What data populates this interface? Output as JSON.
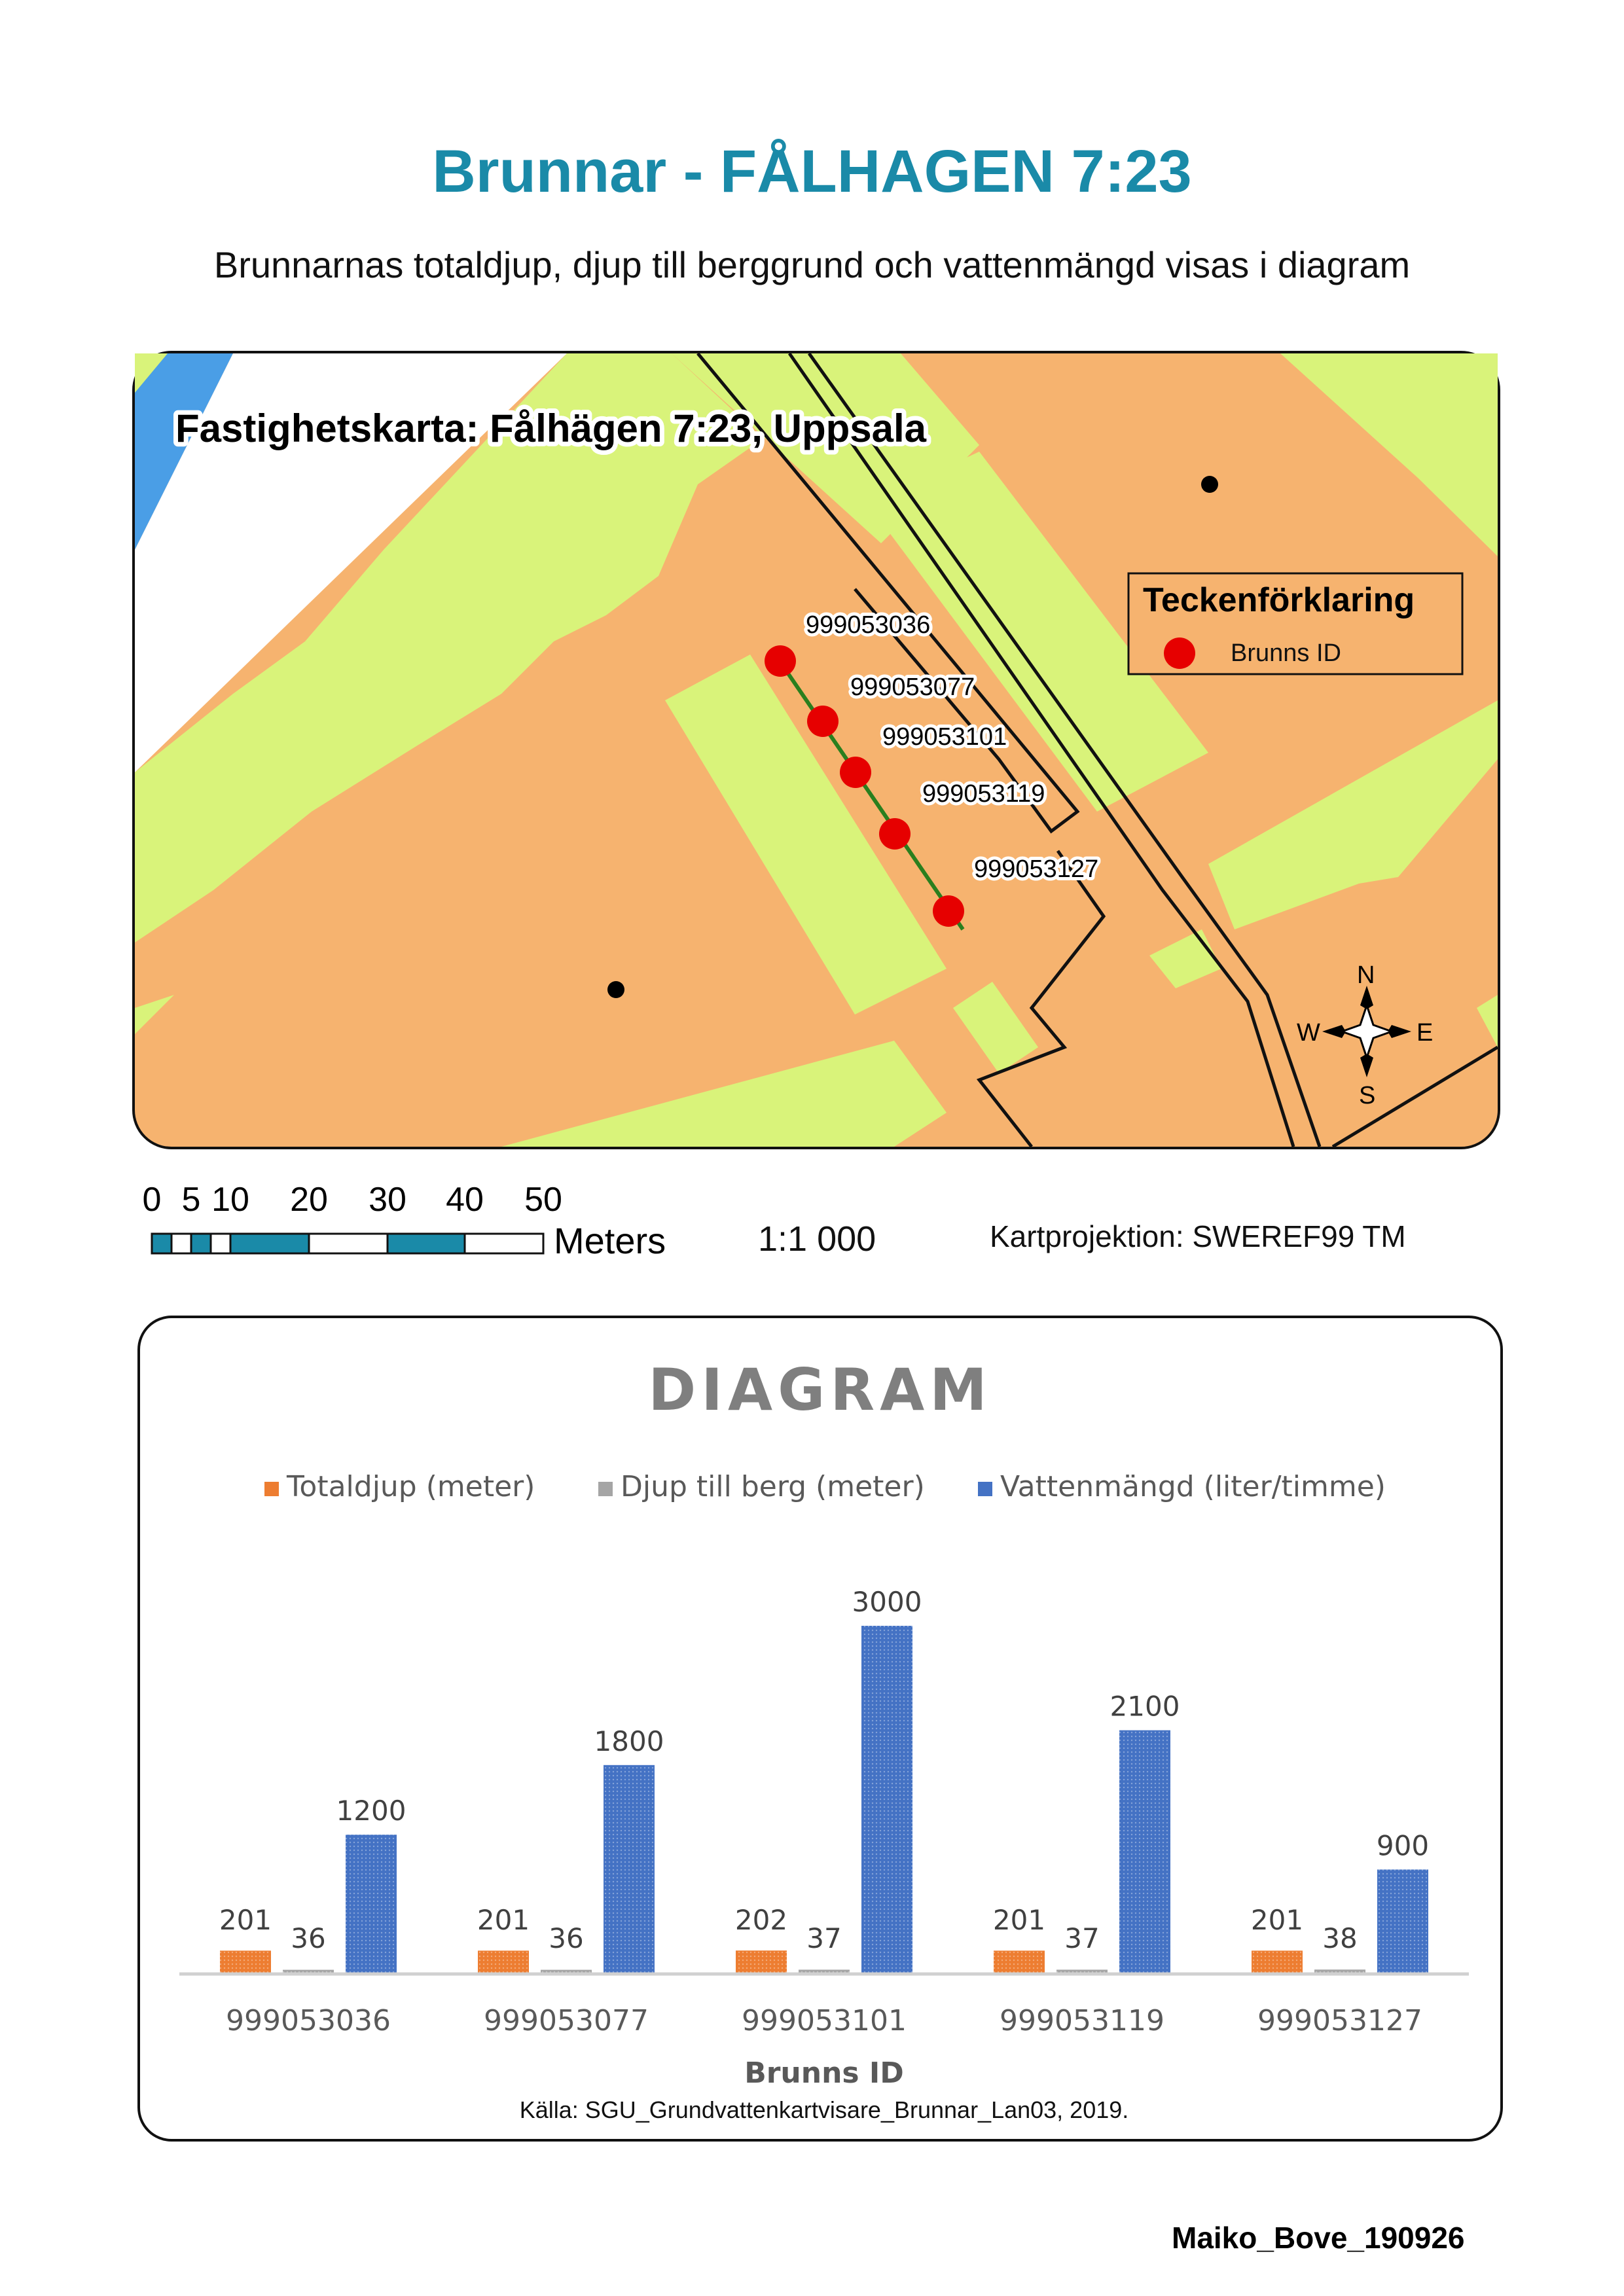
{
  "header": {
    "title": "Brunnar - FÅLHAGEN 7:23",
    "subtitle": "Brunnarnas totaldjup, djup till berggrund och vattenmängd visas i diagram"
  },
  "map": {
    "title": "Fastighetskarta: Fålhägen 7:23, Uppsala",
    "legend": {
      "title": "Teckenförklaring",
      "item_label": "Brunns ID",
      "item_color": "#e60000"
    },
    "wells": [
      "999053036",
      "999053077",
      "999053101",
      "999053119",
      "999053127"
    ],
    "compass": {
      "n": "N",
      "s": "S",
      "e": "E",
      "w": "W"
    },
    "colors": {
      "property": "#f6b36f",
      "building": "#d9f37a",
      "water": "#4a9ee6",
      "road": "#ffffff",
      "well": "#e60000",
      "pipe": "#2a7f1e"
    },
    "scale_bar": {
      "ticks": [
        "0",
        "5",
        "10",
        "20",
        "30",
        "40",
        "50"
      ],
      "unit": "Meters",
      "color": "#1a8aa8"
    },
    "ratio": "1:1 000",
    "projection": "Kartprojektion: SWEREF99 TM"
  },
  "chart_data": {
    "type": "bar",
    "title": "DIAGRAM",
    "xlabel": "Brunns ID",
    "ylabel": "",
    "categories": [
      "999053036",
      "999053077",
      "999053101",
      "999053119",
      "999053127"
    ],
    "series": [
      {
        "name": "Totaldjup (meter)",
        "values": [
          201,
          201,
          202,
          201,
          201
        ],
        "color": "#ed7d31"
      },
      {
        "name": "Djup till berg (meter)",
        "values": [
          36,
          36,
          37,
          37,
          38
        ],
        "color": "#a5a5a5"
      },
      {
        "name": "Vattenmängd (liter/timme)",
        "values": [
          1200,
          1800,
          3000,
          2100,
          900
        ],
        "color": "#4472c4"
      }
    ],
    "ylim": [
      0,
      3000
    ],
    "grid": false,
    "legend": "top",
    "data_labels": true,
    "source": "Källa: SGU_Grundvattenkartvisare_Brunnar_Lan03, 2019."
  },
  "footer": {
    "signature": "Maiko_Bove_190926"
  }
}
